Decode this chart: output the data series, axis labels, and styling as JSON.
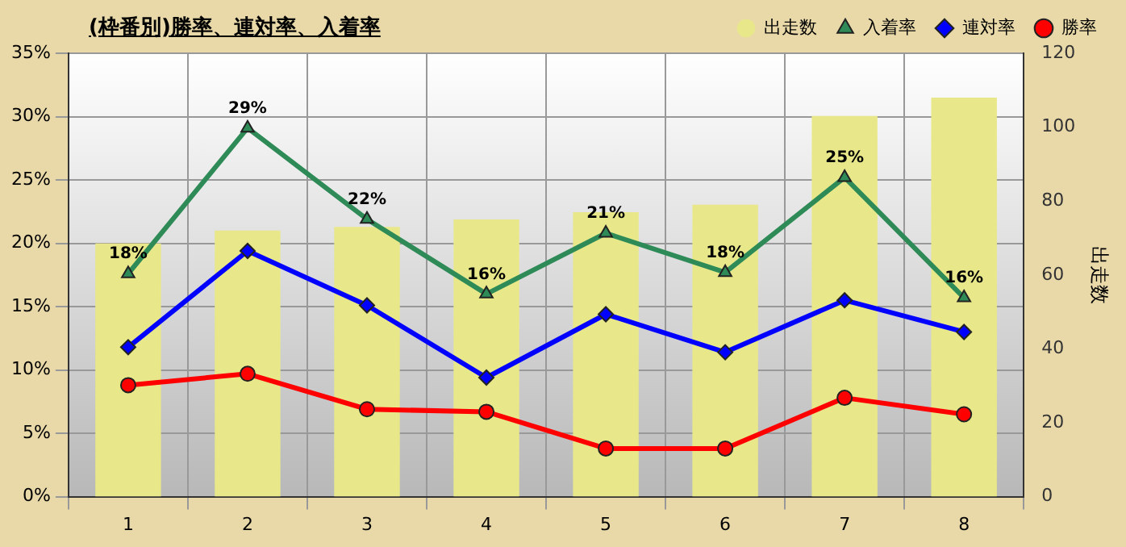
{
  "chart_data": {
    "type": "line",
    "title": "(枠番別)勝率、連対率、入着率",
    "categories": [
      "1",
      "2",
      "3",
      "4",
      "5",
      "6",
      "7",
      "8"
    ],
    "series": [
      {
        "name": "出走数",
        "type": "bar",
        "axis": "y2",
        "color": "#e8e88a",
        "values": [
          68.5,
          72,
          73,
          75,
          77,
          79,
          103,
          108
        ]
      },
      {
        "name": "入着率",
        "marker": "triangle",
        "color": "#2e8b57",
        "values": [
          17.6,
          29.1,
          21.9,
          16.0,
          20.8,
          17.7,
          25.2,
          15.7
        ],
        "value_labels": [
          "18%",
          "29%",
          "22%",
          "16%",
          "21%",
          "18%",
          "25%",
          "16%"
        ]
      },
      {
        "name": "連対率",
        "marker": "diamond",
        "color": "#0000ff",
        "values": [
          11.8,
          19.4,
          15.1,
          9.4,
          14.4,
          11.4,
          15.5,
          13.0
        ]
      },
      {
        "name": "勝率",
        "marker": "circle",
        "color": "#ff0000",
        "values": [
          8.8,
          9.7,
          6.9,
          6.7,
          3.8,
          3.8,
          7.8,
          6.5
        ]
      }
    ],
    "ylim": [
      0,
      35
    ],
    "yticks": [
      {
        "value": 0,
        "label": "0%"
      },
      {
        "value": 5,
        "label": "5%"
      },
      {
        "value": 10,
        "label": "10%"
      },
      {
        "value": 15,
        "label": "15%"
      },
      {
        "value": 20,
        "label": "20%"
      },
      {
        "value": 25,
        "label": "25%"
      },
      {
        "value": 30,
        "label": "30%"
      },
      {
        "value": 35,
        "label": "35%"
      }
    ],
    "y2lim": [
      0,
      120
    ],
    "y2ticks": [
      0,
      20,
      40,
      60,
      80,
      100,
      120
    ],
    "y2label": "出走数",
    "grid": true,
    "legend": "top right"
  }
}
